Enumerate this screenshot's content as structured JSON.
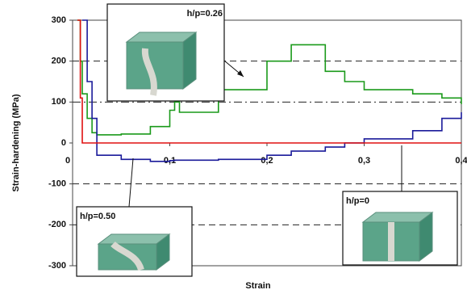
{
  "chart_data": {
    "type": "line",
    "xlabel": "Strain",
    "ylabel": "Strain-hardening (MPa)",
    "x": [
      0.005,
      0.008,
      0.01,
      0.015,
      0.02,
      0.025,
      0.05,
      0.08,
      0.1,
      0.105,
      0.11,
      0.15,
      0.2,
      0.225,
      0.26,
      0.28,
      0.3,
      0.35,
      0.38,
      0.4
    ],
    "series": [
      {
        "name": "h/p=0.26",
        "color": "#1a9a1a",
        "values": [
          300,
          200,
          120,
          60,
          25,
          20,
          22,
          40,
          80,
          100,
          75,
          130,
          200,
          240,
          175,
          150,
          130,
          120,
          110,
          95
        ]
      },
      {
        "name": "h/p=0.50",
        "color": "#1a1a9a",
        "values": [
          null,
          null,
          300,
          150,
          60,
          -30,
          -40,
          -45,
          -43,
          -42,
          -42,
          -40,
          -30,
          -20,
          -10,
          0,
          10,
          30,
          60,
          75
        ]
      },
      {
        "name": "h/p=0",
        "color": "#e01010",
        "values": [
          300,
          110,
          0,
          0,
          0,
          0,
          0,
          0,
          0,
          0,
          0,
          0,
          0,
          0,
          0,
          0,
          0,
          0,
          0,
          0
        ]
      }
    ],
    "xlim": [
      0,
      0.4
    ],
    "xticks": [
      0,
      {
        "value": 0.1,
        "label": "0,1"
      },
      {
        "value": 0.2,
        "label": "0,2"
      },
      {
        "value": 0.3,
        "label": "0,3"
      },
      {
        "value": 0.4,
        "label": "0,4"
      }
    ],
    "ylim": [
      -300,
      300
    ],
    "yticks": [
      -300,
      -200,
      -100,
      0,
      100,
      200,
      300
    ],
    "grid": true
  }
}
